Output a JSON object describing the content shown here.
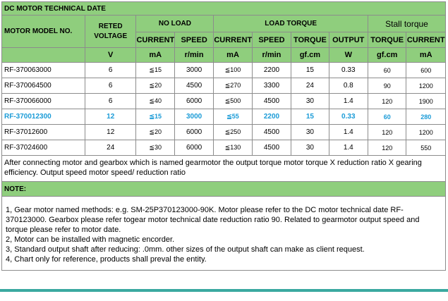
{
  "title": "DC MOTOR TECHNICAL DATE",
  "headers": {
    "model": "MOTOR MODEL NO.",
    "voltage": "RETED VOLTAGE",
    "no_load": "NO LOAD",
    "load_torque": "LOAD TORQUE",
    "stall_torque": "Stall torque",
    "cols": [
      "CURRENT",
      "SPEED",
      "CURRENT",
      "SPEED",
      "TORQUE",
      "OUTPUT",
      "TORQUE",
      "CURRENT"
    ],
    "units": [
      "V",
      "mA",
      "r/min",
      "mA",
      "r/min",
      "gf.cm",
      "W",
      "gf.cm",
      "mA"
    ]
  },
  "rows": [
    [
      "RF-370063000",
      "6",
      "≦15",
      "3000",
      "≦100",
      "2200",
      "15",
      "0.33",
      "60",
      "600"
    ],
    [
      "RF-370064500",
      "6",
      "≦20",
      "4500",
      "≦270",
      "3300",
      "24",
      "0.8",
      "90",
      "1200"
    ],
    [
      "RF-370066000",
      "6",
      "≦40",
      "6000",
      "≦500",
      "4500",
      "30",
      "1.4",
      "120",
      "1900"
    ],
    [
      "RF-370012300",
      "12",
      "≦15",
      "3000",
      "≦55",
      "2200",
      "15",
      "0.33",
      "60",
      "280"
    ],
    [
      "RF-37012600",
      "12",
      "≦20",
      "6000",
      "≦250",
      "4500",
      "30",
      "1.4",
      "120",
      "1200"
    ],
    [
      "RF-37024600",
      "24",
      "≦30",
      "6000",
      "≦130",
      "4500",
      "30",
      "1.4",
      "120",
      "550"
    ]
  ],
  "highlight_color": "#1a9bd7",
  "header_color": "#8fce7d",
  "paragraph": "After connecting motor and gearbox which is named gearmotor the output torque motor torque X reduction ratio X gearing efficiency. Output speed motor speed/ reduction ratio",
  "note_title": "NOTE:",
  "notes": [
    "1, Gear motor named methods: e.g. SM-25P370123000-90K. Motor please refer to the DC motor technical date RF-370123000. Gearbox please refer togear motor technical date reduction ratio 90. Related to gearmotor output speed and torque please refer to motor date.",
    "2, Motor can be installed with magnetic encorder.",
    "3, Standard output shaft after reducing: .0mm. other sizes of the output shaft can make as client request.",
    "4, Chart only for reference, products shall preval the entity."
  ]
}
